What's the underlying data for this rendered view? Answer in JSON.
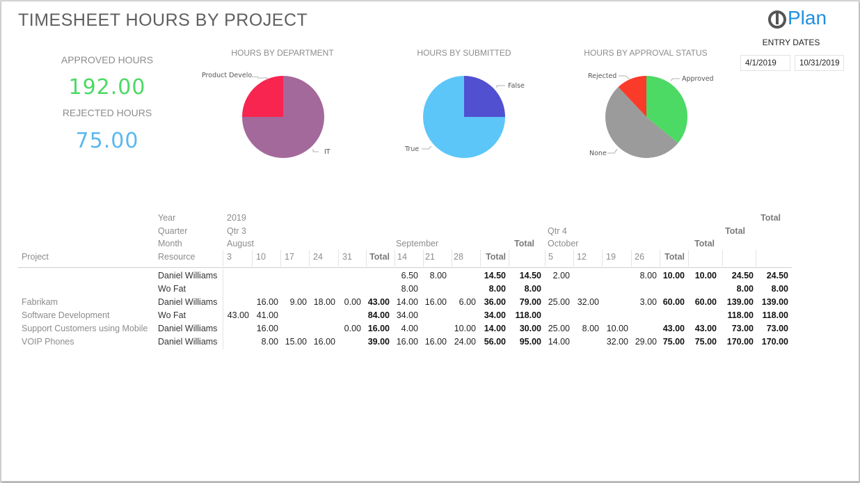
{
  "page": {
    "title": "TIMESHEET HOURS BY PROJECT"
  },
  "logo": {
    "text": "Plan",
    "icon": "oneplan-logo-icon",
    "color": "#1f8fe0"
  },
  "kpis": {
    "approved_label": "APPROVED HOURS",
    "approved_value": "192.00",
    "approved_color": "#4cd964",
    "rejected_label": "REJECTED HOURS",
    "rejected_value": "75.00",
    "rejected_color": "#5ab8f0"
  },
  "filters": {
    "entry_dates_label": "ENTRY DATES",
    "start_date": "4/1/2019",
    "end_date": "10/31/2019"
  },
  "charts": {
    "department": {
      "title": "HOURS BY DEPARTMENT"
    },
    "submitted": {
      "title": "HOURS BY SUBMITTED"
    },
    "approval": {
      "title": "HOURS BY APPROVAL STATUS"
    }
  },
  "chart_data": [
    {
      "type": "pie",
      "title": "HOURS BY DEPARTMENT",
      "slices": [
        {
          "label": "Product Develo...",
          "value": 24.5,
          "color": "#f7254f"
        },
        {
          "label": "IT",
          "value": 73.5,
          "color": "#a4699b"
        }
      ]
    },
    {
      "type": "pie",
      "title": "HOURS BY SUBMITTED",
      "slices": [
        {
          "label": "False",
          "value": 25,
          "color": "#5050d0"
        },
        {
          "label": "True",
          "value": 75,
          "color": "#5cc6f8"
        }
      ]
    },
    {
      "type": "pie",
      "title": "HOURS BY APPROVAL STATUS",
      "slices": [
        {
          "label": "Approved",
          "value": 36,
          "color": "#4cd964"
        },
        {
          "label": "None",
          "value": 52,
          "color": "#9b9b9b"
        },
        {
          "label": "Rejected",
          "value": 12,
          "color": "#fb3b2a"
        }
      ]
    }
  ],
  "matrix": {
    "header_labels": {
      "year": "Year",
      "quarter": "Quarter",
      "month": "Month",
      "resource": "Resource",
      "project": "Project"
    },
    "year": "2019",
    "q3": "Qtr 3",
    "q4": "Qtr 4",
    "aug": "August",
    "sep": "September",
    "oct": "October",
    "total": "Total",
    "days": [
      "3",
      "10",
      "17",
      "24",
      "31",
      "14",
      "21",
      "28",
      "5",
      "12",
      "19",
      "26"
    ],
    "rows": [
      {
        "project": "",
        "resource": "Daniel Williams",
        "cells": [
          "",
          "",
          "",
          "",
          "",
          "",
          "6.50",
          "8.00",
          "",
          "14.50",
          "14.50",
          "2.00",
          "",
          "",
          "8.00",
          "10.00",
          "10.00",
          "24.50",
          "24.50"
        ]
      },
      {
        "project": "",
        "resource": "Wo Fat",
        "cells": [
          "",
          "",
          "",
          "",
          "",
          "",
          "8.00",
          "",
          "",
          "8.00",
          "8.00",
          "",
          "",
          "",
          "",
          "",
          "",
          "8.00",
          "8.00"
        ]
      },
      {
        "project": "Fabrikam",
        "resource": "Daniel Williams",
        "cells": [
          "",
          "16.00",
          "9.00",
          "18.00",
          "0.00",
          "43.00",
          "14.00",
          "16.00",
          "6.00",
          "36.00",
          "79.00",
          "25.00",
          "32.00",
          "",
          "3.00",
          "60.00",
          "60.00",
          "139.00",
          "139.00"
        ]
      },
      {
        "project": "Software Development",
        "resource": "Wo Fat",
        "cells": [
          "43.00",
          "41.00",
          "",
          "",
          "",
          "84.00",
          "34.00",
          "",
          "",
          "34.00",
          "118.00",
          "",
          "",
          "",
          "",
          "",
          "",
          "118.00",
          "118.00"
        ]
      },
      {
        "project": "Support Customers using Mobile",
        "resource": "Daniel Williams",
        "cells": [
          "",
          "16.00",
          "",
          "",
          "0.00",
          "16.00",
          "4.00",
          "",
          "10.00",
          "14.00",
          "30.00",
          "25.00",
          "8.00",
          "10.00",
          "",
          "43.00",
          "43.00",
          "73.00",
          "73.00"
        ]
      },
      {
        "project": "VOIP Phones",
        "resource": "Daniel Williams",
        "cells": [
          "",
          "8.00",
          "15.00",
          "16.00",
          "",
          "39.00",
          "16.00",
          "16.00",
          "24.00",
          "56.00",
          "95.00",
          "14.00",
          "",
          "32.00",
          "29.00",
          "75.00",
          "75.00",
          "170.00",
          "170.00"
        ]
      }
    ]
  }
}
